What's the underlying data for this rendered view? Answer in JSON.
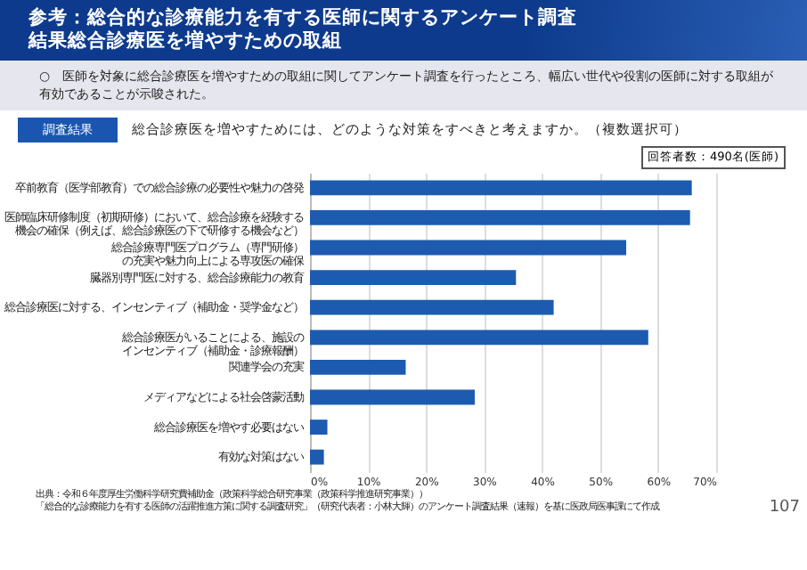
{
  "chart_data": {
    "type": "bar",
    "orientation": "horizontal",
    "title": "参考：総合的な診療能力を有する医師に関するアンケート調査結果総合診療医を増やすための取組",
    "subtitle": "○　医師を対象に総合診療医を増やすための取組に関してアンケート調査を行ったところ、幅広い世代や役割の医師に対する取組が有効であることが示唆された。",
    "categories": [
      "卒前教育（医学部教育）での総合診療の必要性や魅力の啓発",
      "医師臨床研修制度（初期研修）において、総合診療を経験する機会の確保（例えば、総合診療医の下で研修する機会など）",
      "総合診療専門医プログラム（専門研修）の充実や魅力向上による専攻医の確保",
      "臓器別専門医に対する、総合診療能力の教育",
      "総合診療医に対する、インセンティブ（補助金・奨学金など）",
      "総合診療医がいることによる、施設のインセンティブ（補助金・診療報酬）",
      "関連学会の充実",
      "メディアなどによる社会啓蒙活動",
      "総合診療医を増やす必要はない",
      "有効な対策はない"
    ],
    "values": [
      65.8,
      65.5,
      54.5,
      35.5,
      42.0,
      58.3,
      16.5,
      28.4,
      3.0,
      2.4
    ],
    "color": "#1c5bb0",
    "xlim": [
      0,
      70
    ],
    "xticks": [
      {
        "value": 0,
        "label": "0%"
      },
      {
        "value": 10,
        "label": "10%"
      },
      {
        "value": 20,
        "label": "20%"
      },
      {
        "value": 30,
        "label": "30%"
      },
      {
        "value": 40,
        "label": "40%"
      },
      {
        "value": 50,
        "label": "50%"
      },
      {
        "value": 60,
        "label": "60%"
      },
      {
        "value": 70,
        "label": "70%"
      }
    ],
    "grid": "x",
    "annotations": [
      "調査結果",
      "総合診療医を増やすためには、どのような対策をすべきと考えますか。（複数選択可）",
      "回答者数：490名(医師)",
      "出典：令和６年度厚生労働科学研究費補助金（政策科学総合研究事業（政策科学推進研究事業））",
      "「総合的な診療能力を有する医師の活躍推進方策に関する調査研究」（研究代表者：小林大輝）のアンケート調査結果（速報）を基に医政局医事課にて作成",
      "107"
    ]
  }
}
